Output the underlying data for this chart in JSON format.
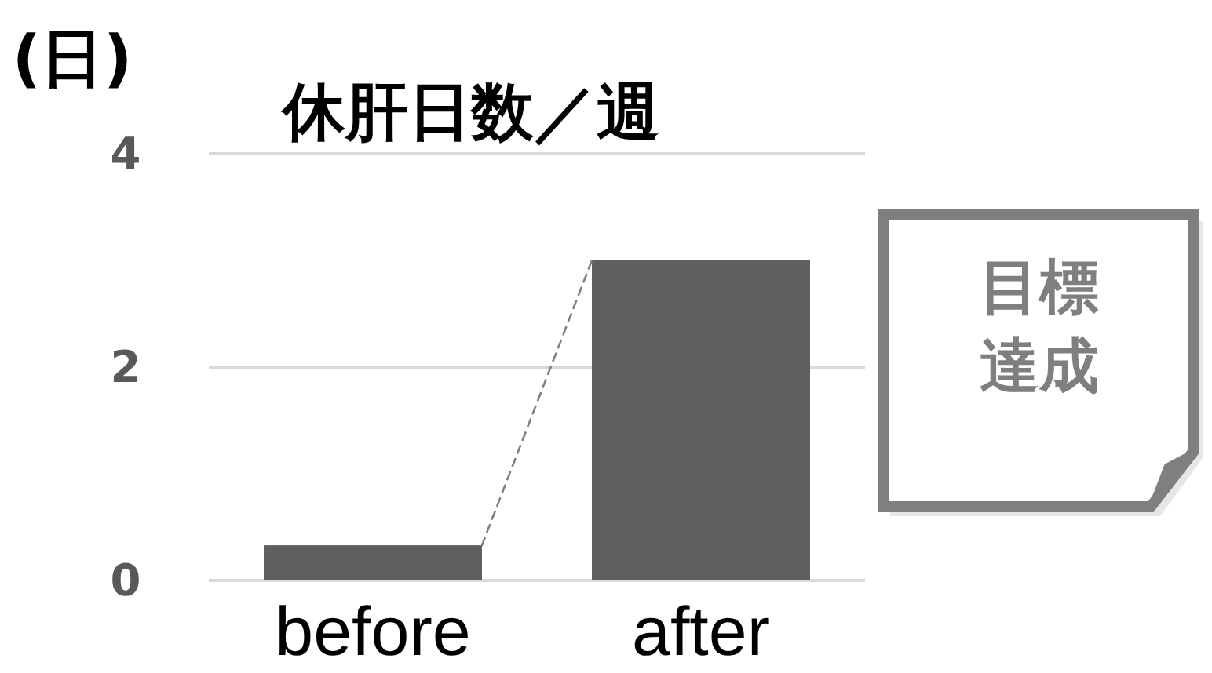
{
  "chart_data": {
    "type": "bar",
    "title": "休肝日数／週",
    "ylabel": "(日)",
    "categories": [
      "before",
      "after"
    ],
    "series": [
      {
        "color": "#5f5f5f",
        "values": [
          0.33,
          3
        ]
      }
    ],
    "ylim": [
      0,
      4
    ],
    "yticks": [
      0,
      2,
      4
    ],
    "grid": "y",
    "annotations": [
      "目標達成"
    ]
  }
}
